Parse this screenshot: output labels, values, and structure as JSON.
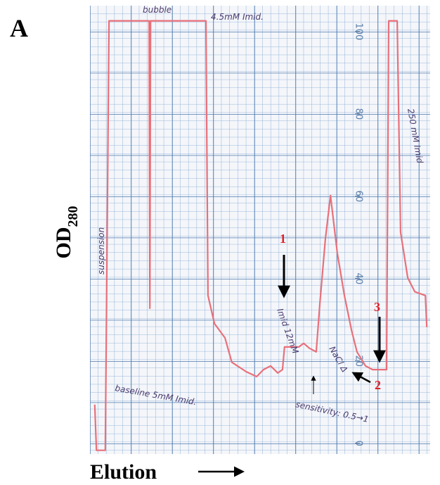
{
  "chart_data": {
    "type": "line",
    "panel_label": "A",
    "ylabel": "OD",
    "ylabel_subscript": "280",
    "xlabel": "Elution",
    "color": "#e8707a",
    "xlim": [
      0,
      100
    ],
    "ylim": [
      -2.6,
      106.3
    ],
    "yticks": [
      0,
      20,
      40,
      60,
      80,
      100
    ],
    "x": [
      1.4,
      1.9,
      4.5,
      5.6,
      17.4,
      17.6,
      17.8,
      34.1,
      34.7,
      36.6,
      39.7,
      41.7,
      45.9,
      49.0,
      51.0,
      53.1,
      55.2,
      56.6,
      57.2,
      61.4,
      62.8,
      64.5,
      66.5,
      67.6,
      69.2,
      70.7,
      72.7,
      74.8,
      76.9,
      78.5,
      81.0,
      83.1,
      87.2,
      87.8,
      90.3,
      91.3,
      93.4,
      95.5,
      98.6,
      99.0
    ],
    "values": [
      9.4,
      -1.7,
      -1.7,
      102.6,
      102.6,
      32.8,
      102.6,
      102.6,
      35.9,
      29.1,
      25.6,
      19.7,
      17.4,
      16.2,
      17.9,
      18.8,
      17.1,
      17.9,
      23.4,
      23.4,
      24.3,
      23.1,
      22.2,
      34.2,
      49.6,
      60.2,
      46.2,
      35.9,
      27.4,
      22.2,
      18.8,
      17.9,
      17.9,
      102.6,
      102.6,
      51.3,
      40.2,
      36.8,
      35.9,
      28.2
    ],
    "annotations": [
      "bubble",
      "4.5mM Imid.",
      "suspension",
      "baseline 5mM Imid.",
      "Imid 12mM",
      "NaCl Δ",
      "sensitivity: 0.5→1",
      "250 mM Imid",
      "1",
      "2",
      "3"
    ]
  }
}
